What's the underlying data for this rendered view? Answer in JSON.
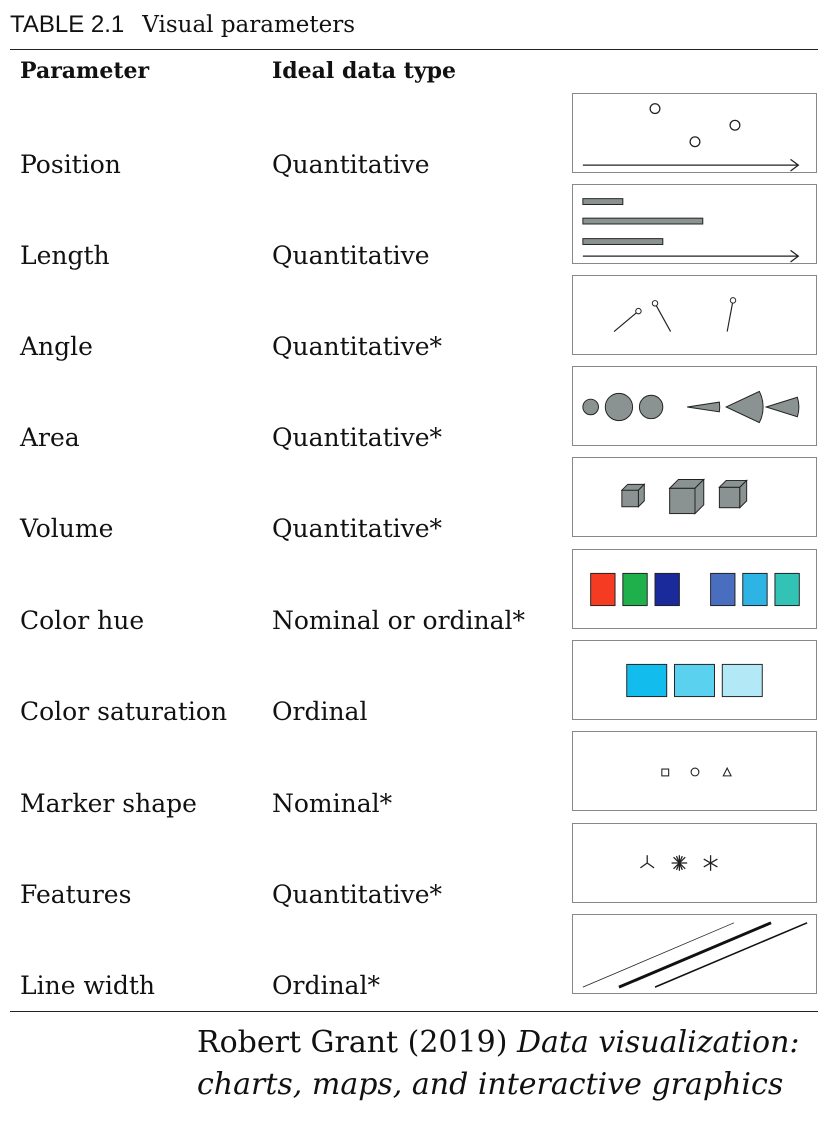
{
  "caption": {
    "label": "TABLE 2.1",
    "title": "Visual parameters"
  },
  "headers": {
    "parameter": "Parameter",
    "ideal_type": "Ideal data type"
  },
  "rows": [
    {
      "parameter": "Position",
      "type": "Quantitative"
    },
    {
      "parameter": "Length",
      "type": "Quantitative"
    },
    {
      "parameter": "Angle",
      "type": "Quantitative*"
    },
    {
      "parameter": "Area",
      "type": "Quantitative*"
    },
    {
      "parameter": "Volume",
      "type": "Quantitative*"
    },
    {
      "parameter": "Color hue",
      "type": "Nominal or ordinal*"
    },
    {
      "parameter": "Color saturation",
      "type": "Ordinal"
    },
    {
      "parameter": "Marker shape",
      "type": "Nominal*"
    },
    {
      "parameter": "Features",
      "type": "Quantitative*"
    },
    {
      "parameter": "Line width",
      "type": "Ordinal*"
    }
  ],
  "credit": {
    "author_year": "Robert Grant (2019)",
    "book_line1": "Data visualization:",
    "book_line2": "charts, maps, and interactive graphics"
  },
  "colors": {
    "grey_fill": "#8a9391",
    "hue_swatches": [
      "#f53b21",
      "#1faf4b",
      "#1b2a9a",
      "#4a6ebf",
      "#2db4e4",
      "#33c3b6"
    ],
    "saturation_swatches": [
      "#12bdee",
      "#5ad1ef",
      "#b3e9f6"
    ]
  }
}
